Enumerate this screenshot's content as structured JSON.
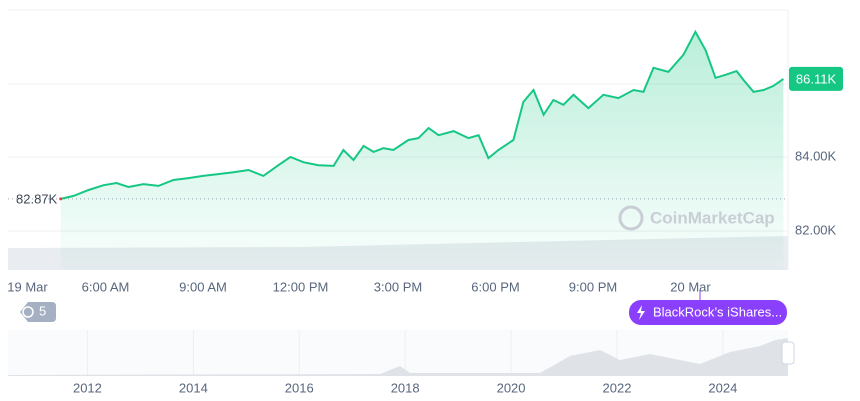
{
  "chart_data": {
    "type": "line",
    "color": "#16c784",
    "x": [
      4.62,
      5.02,
      5.48,
      5.94,
      6.34,
      6.71,
      7.17,
      7.63,
      8.09,
      8.55,
      9.0,
      9.46,
      9.94,
      10.4,
      10.86,
      11.32,
      11.69,
      12.09,
      12.55,
      13.02,
      13.32,
      13.63,
      13.94,
      14.25,
      14.55,
      14.86,
      15.32,
      15.63,
      15.94,
      16.25,
      16.71,
      17.17,
      17.48,
      17.78,
      18.09,
      18.55,
      18.86,
      19.17,
      19.48,
      19.78,
      20.09,
      20.4,
      20.86,
      21.32,
      21.78,
      22.25,
      22.55,
      22.86,
      23.32,
      23.78,
      24.15,
      24.46,
      24.77,
      25.08,
      25.42,
      25.63,
      25.94,
      26.25,
      26.55,
      26.86
    ],
    "values": [
      82870,
      82950,
      83110,
      83240,
      83300,
      83190,
      83270,
      83220,
      83380,
      83430,
      83490,
      83540,
      83590,
      83650,
      83490,
      83780,
      84000,
      83860,
      83780,
      83760,
      84190,
      83920,
      84300,
      84140,
      84240,
      84190,
      84460,
      84510,
      84780,
      84590,
      84700,
      84510,
      84590,
      83970,
      84190,
      84460,
      85490,
      85810,
      85140,
      85540,
      85410,
      85680,
      85320,
      85680,
      85590,
      85810,
      85760,
      86410,
      86300,
      86760,
      87380,
      86890,
      86140,
      86220,
      86320,
      86080,
      85760,
      85810,
      85920,
      86110
    ],
    "xlim": [
      3,
      27
    ],
    "xticks": [
      {
        "value": 3.6,
        "label": "19 Mar"
      },
      {
        "value": 6,
        "label": "6:00 AM"
      },
      {
        "value": 9,
        "label": "9:00 AM"
      },
      {
        "value": 12,
        "label": "12:00 PM"
      },
      {
        "value": 15,
        "label": "3:00 PM"
      },
      {
        "value": 18,
        "label": "6:00 PM"
      },
      {
        "value": 21,
        "label": "9:00 PM"
      },
      {
        "value": 24,
        "label": "20 Mar"
      }
    ],
    "ylim": [
      80950,
      87970
    ],
    "yticks": [
      {
        "value": 82000,
        "label": "82.00K"
      },
      {
        "value": 84000,
        "label": "84.00K"
      }
    ],
    "open_price": {
      "value": 82870,
      "label": "82.87K"
    },
    "last_price": {
      "value": 86110,
      "label": "86.11K"
    },
    "watermark": "CoinMarketCap"
  },
  "badges": {
    "history_count": "5",
    "news": "BlackRock’s iShares..."
  },
  "navigator": {
    "xlim": [
      2010.5,
      2025.23
    ],
    "xticks": [
      2012,
      2014,
      2016,
      2018,
      2020,
      2022,
      2024
    ]
  }
}
